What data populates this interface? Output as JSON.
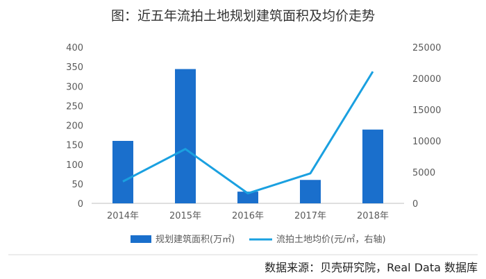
{
  "chart_data": {
    "type": "bar+line",
    "title": "图：近五年流拍土地规划建筑面积及均价走势",
    "categories": [
      "2014年",
      "2015年",
      "2016年",
      "2017年",
      "2018年"
    ],
    "series": [
      {
        "name": "规划建筑面积(万㎡)",
        "type": "bar",
        "axis": "left",
        "values": [
          160,
          344,
          30,
          60,
          189
        ],
        "color": "#1a6fcc"
      },
      {
        "name": "流拍土地均价(元/㎡，右轴)",
        "type": "line",
        "axis": "right",
        "values": [
          3500,
          8700,
          1600,
          4800,
          21100
        ],
        "color": "#1aa0e0"
      }
    ],
    "y_left": {
      "min": 0,
      "max": 400,
      "ticks": [
        "0",
        "50",
        "100",
        "150",
        "200",
        "250",
        "300",
        "350",
        "400"
      ]
    },
    "y_right": {
      "min": 0,
      "max": 25000,
      "ticks": [
        "0",
        "5000",
        "10000",
        "15000",
        "20000",
        "25000"
      ]
    },
    "legend_position": "bottom",
    "grid": false
  },
  "source": "数据来源：贝壳研究院，Real Data 数据库"
}
